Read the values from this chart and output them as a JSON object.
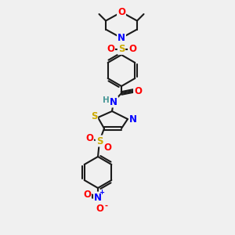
{
  "bg_color": "#f0f0f0",
  "line_color": "#1a1a1a",
  "bond_width": 1.5,
  "atom_colors": {
    "O": "#ff0000",
    "N": "#0000ff",
    "S": "#ccaa00",
    "H": "#4a9999",
    "C": "#1a1a1a"
  },
  "font_size": 8.5,
  "fig_size": [
    3.0,
    3.0
  ],
  "dpi": 100
}
